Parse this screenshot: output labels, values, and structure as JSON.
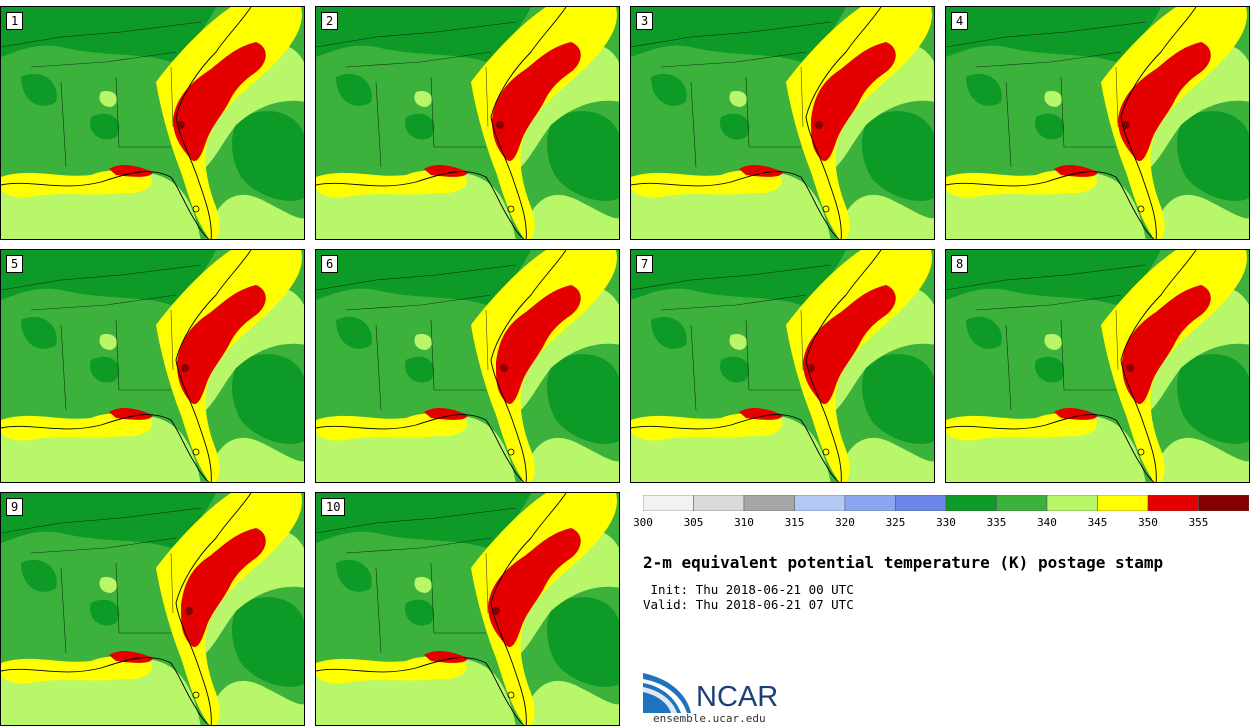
{
  "panels": [
    {
      "label": "1"
    },
    {
      "label": "2"
    },
    {
      "label": "3"
    },
    {
      "label": "4"
    },
    {
      "label": "5"
    },
    {
      "label": "6"
    },
    {
      "label": "7"
    },
    {
      "label": "8"
    },
    {
      "label": "9"
    },
    {
      "label": "10"
    }
  ],
  "colorbar": {
    "ticks": [
      "300",
      "305",
      "310",
      "315",
      "320",
      "325",
      "330",
      "335",
      "340",
      "345",
      "350",
      "355"
    ],
    "colors": [
      "#f2f2f2",
      "#d9d9d9",
      "#a6a6a6",
      "#b4c8f5",
      "#8aa6f0",
      "#6c86ec",
      "#0e9a26",
      "#3cb23c",
      "#b8f76a",
      "#ffff00",
      "#e50000",
      "#850000"
    ]
  },
  "title": "2-m equivalent potential temperature (K) postage stamp",
  "init": " Init: Thu 2018-06-21 00 UTC",
  "valid": "Valid: Thu 2018-06-21 07 UTC",
  "logo": {
    "name": "NCAR",
    "url": "ensemble.ucar.edu"
  }
}
